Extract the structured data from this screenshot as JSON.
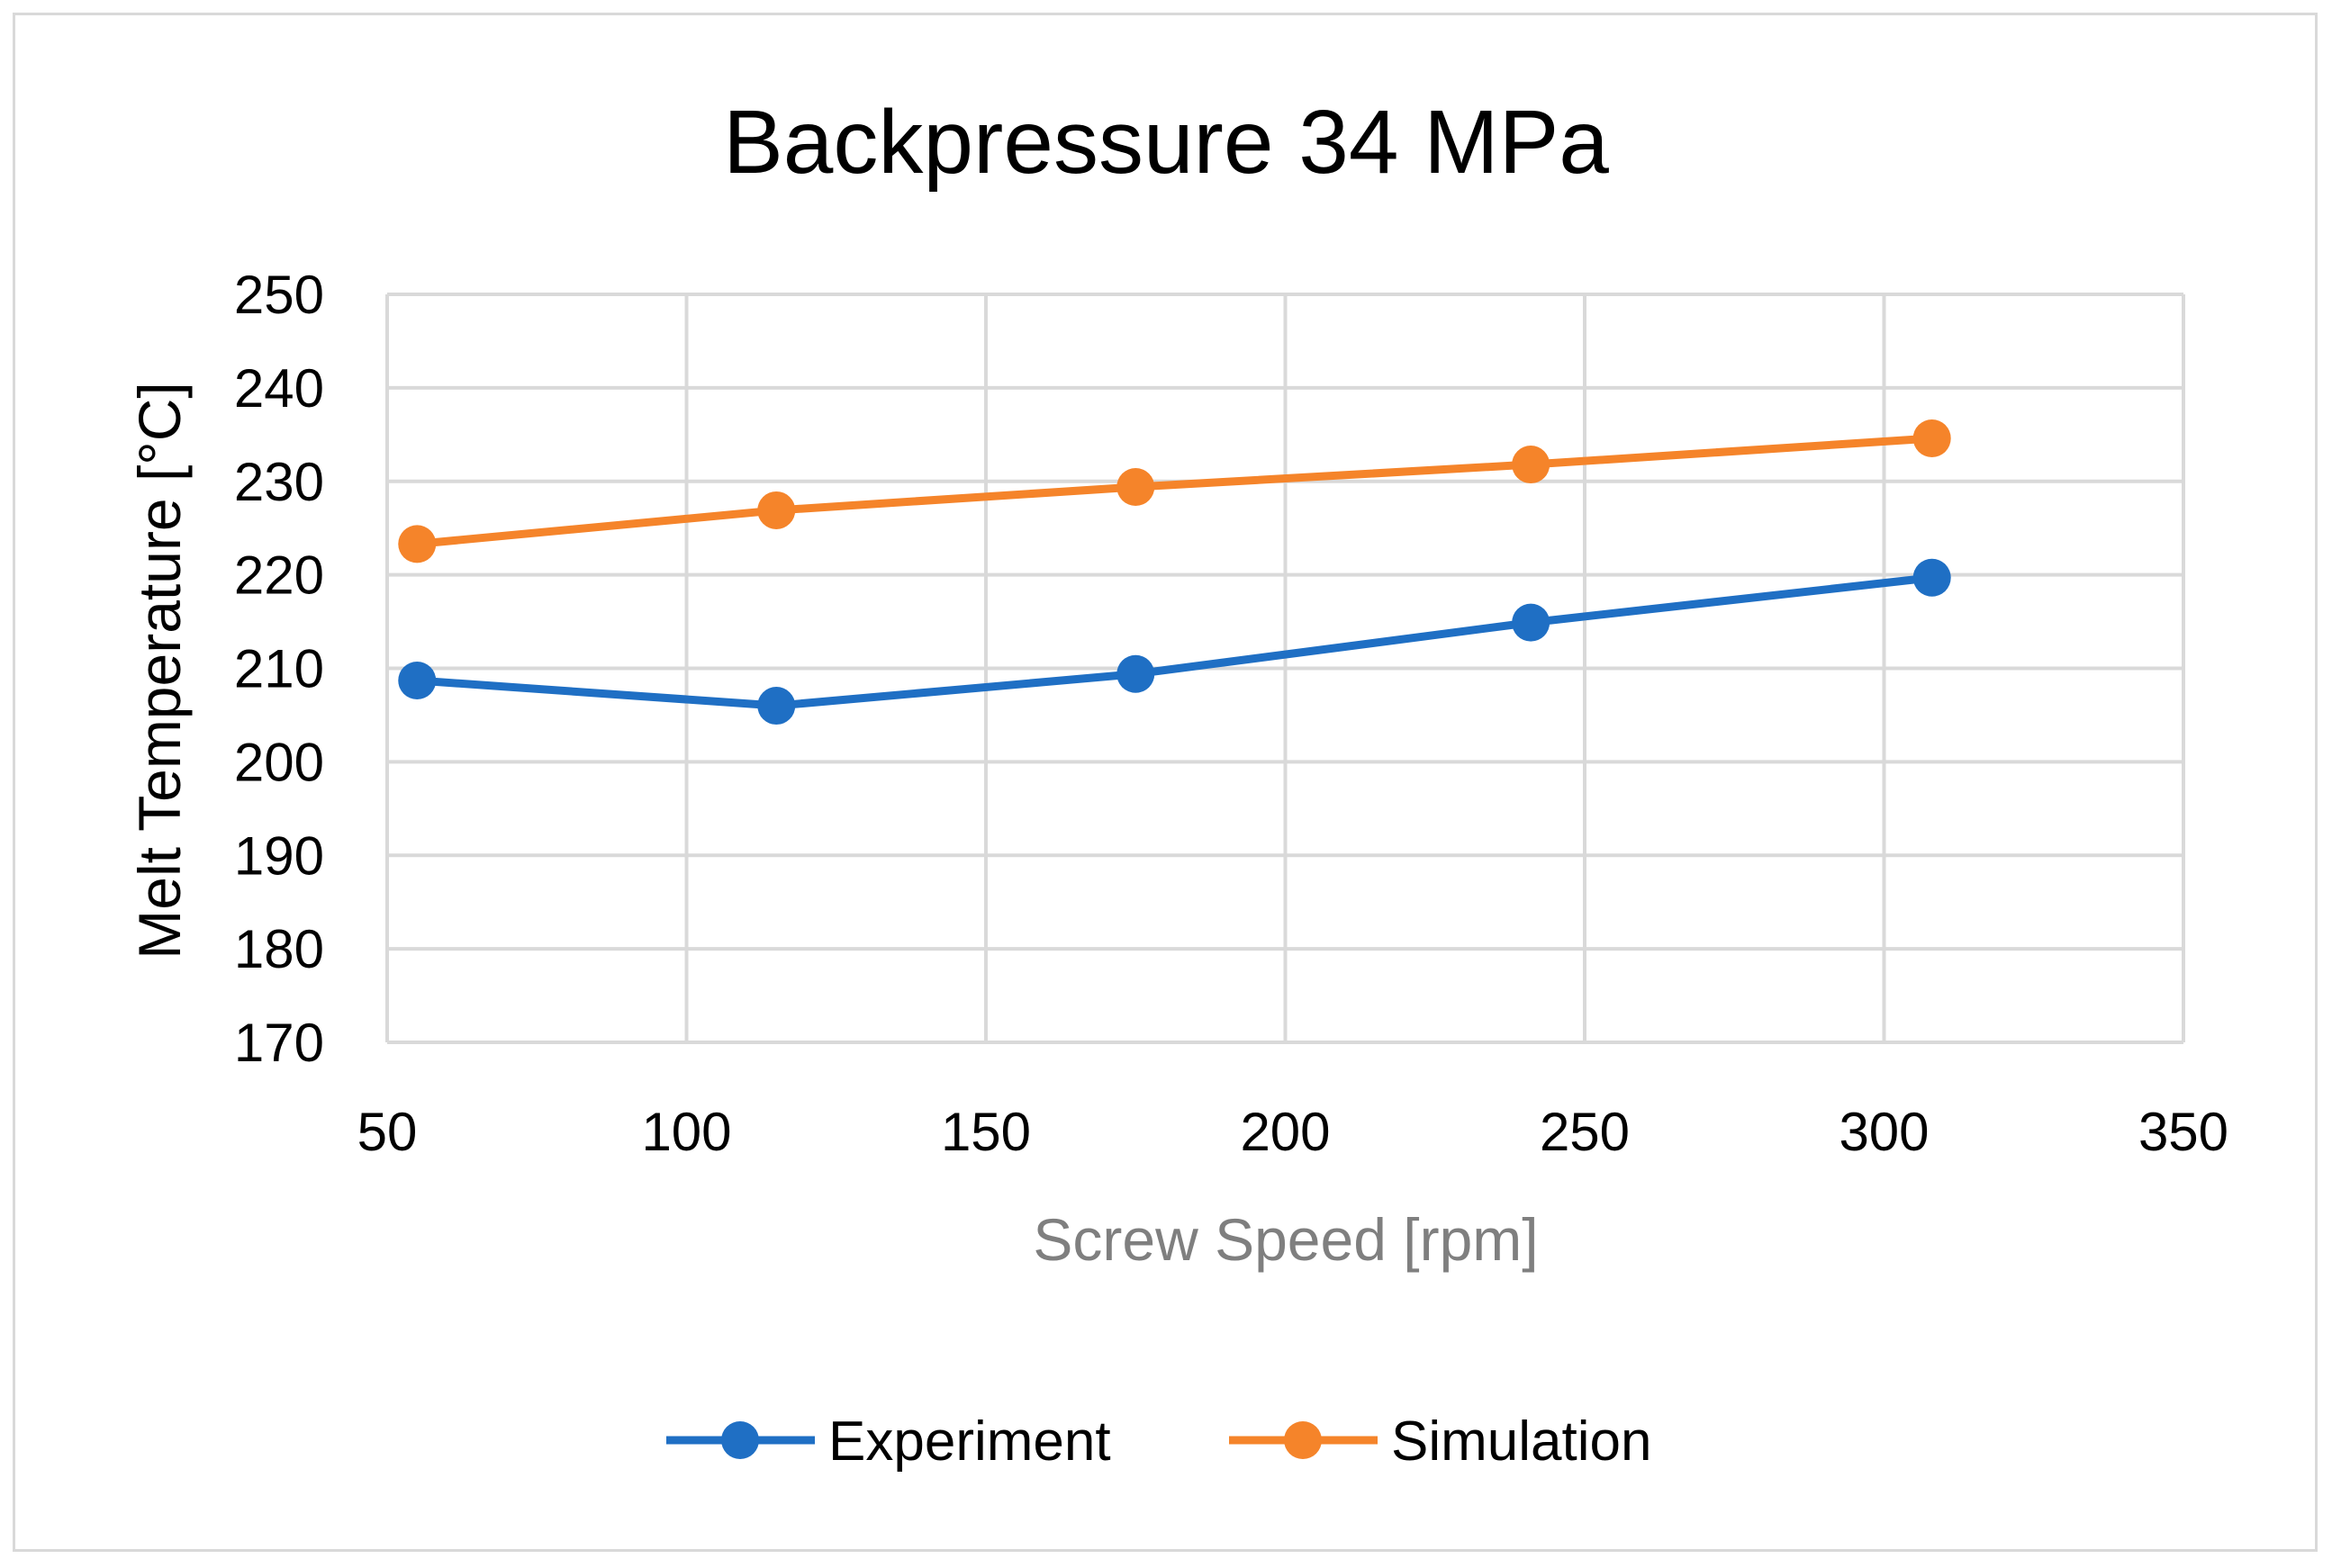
{
  "chart_data": {
    "type": "line",
    "title": "Backpressure 34 MPa",
    "xlabel": "Screw Speed [rpm]",
    "ylabel": "Melt Temperature [°C]",
    "xlim": [
      50,
      350
    ],
    "ylim": [
      170,
      250
    ],
    "xticks": [
      "50",
      "100",
      "150",
      "200",
      "250",
      "300",
      "350"
    ],
    "yticks": [
      "170",
      "180",
      "190",
      "200",
      "210",
      "220",
      "230",
      "240",
      "250"
    ],
    "grid": true,
    "legend": "bottom-center",
    "series": [
      {
        "name": "Experiment",
        "color": "#1f6fc4",
        "x": [
          55,
          115,
          175,
          241,
          308
        ],
        "y": [
          208.7,
          206.0,
          209.4,
          214.9,
          219.7
        ]
      },
      {
        "name": "Simulation",
        "color": "#f5842a",
        "x": [
          55,
          115,
          175,
          241,
          308
        ],
        "y": [
          223.3,
          226.9,
          229.4,
          231.8,
          234.6
        ]
      }
    ]
  }
}
